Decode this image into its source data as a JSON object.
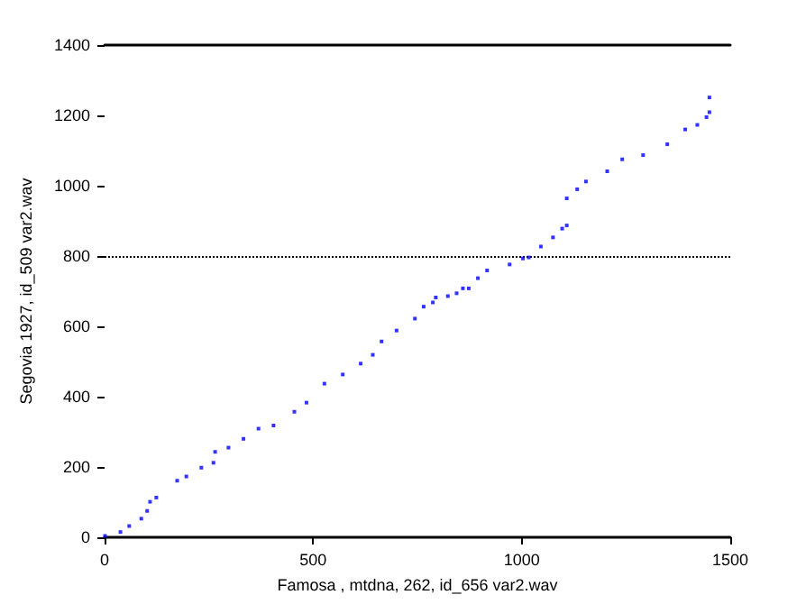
{
  "chart_data": {
    "type": "scatter",
    "xlabel": "Famosa , mtdna, 262, id_656 var2.wav",
    "ylabel": "Segovia 1927, id_509 var2.wav",
    "x": [
      1,
      38,
      59,
      88,
      102,
      109,
      124,
      174,
      196,
      232,
      261,
      265,
      297,
      333,
      369,
      405,
      455,
      484,
      527,
      571,
      614,
      643,
      664,
      700,
      744,
      765,
      787,
      794,
      823,
      844,
      859,
      873,
      895,
      917,
      971,
      1003,
      1017,
      1046,
      1075,
      1097,
      1108,
      1108,
      1133,
      1154,
      1205,
      1241,
      1291,
      1349,
      1392,
      1421,
      1443,
      1450,
      1450
    ],
    "series": [
      {
        "color": "#0000ff",
        "values": [
          4,
          15,
          32,
          53,
          75,
          101,
          113,
          161,
          173,
          198,
          212,
          243,
          255,
          280,
          309,
          318,
          357,
          383,
          437,
          463,
          494,
          519,
          557,
          588,
          622,
          656,
          668,
          682,
          686,
          694,
          708,
          708,
          737,
          759,
          776,
          793,
          796,
          827,
          853,
          878,
          887,
          964,
          990,
          1012,
          1041,
          1075,
          1087,
          1118,
          1160,
          1173,
          1195,
          1209,
          1251
        ]
      }
    ],
    "xlim": [
      0,
      1500
    ],
    "xticks": [
      0,
      500,
      1000,
      1500
    ],
    "ylim": [
      0,
      1400
    ],
    "yticks": [
      0,
      200,
      400,
      600,
      800,
      1000,
      1200,
      1400
    ],
    "ref_lines": [
      {
        "axis": "y",
        "value": 800,
        "line_style": "dotted",
        "color": "#000000"
      }
    ],
    "grid": false,
    "marker": "square"
  }
}
